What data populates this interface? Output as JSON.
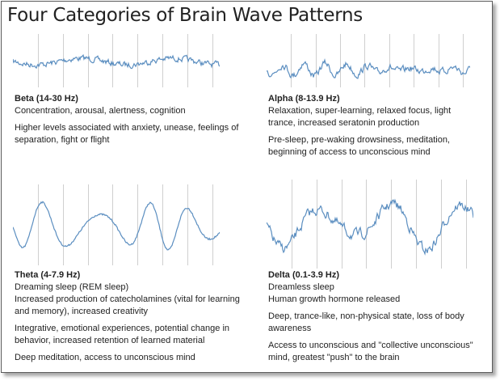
{
  "title": "Four Categories of Brain Wave Patterns",
  "wave_color": "#5b8ec0",
  "grid_color": "#cfcfcf",
  "panels": [
    {
      "heading": "Beta (14-30 Hz)",
      "line1": "Concentration, arousal, alertness, cognition",
      "para2": "Higher levels associated with anxiety, unease, feelings of separation, fight or flight",
      "para3": "",
      "para4": ""
    },
    {
      "heading": "Alpha (8-13.9 Hz)",
      "line1": "Relaxation, super-learning, relaxed focus, light trance, increased seratonin production",
      "para2": "Pre-sleep, pre-waking drowsiness, meditation, beginning of access to unconscious mind",
      "para3": "",
      "para4": ""
    },
    {
      "heading": "Theta (4-7.9 Hz)",
      "line1": "Dreaming sleep (REM sleep)",
      "line2": "Increased production of catecholamines (vital for learning and memory), increased creativity",
      "para2": "Integrative, emotional experiences, potential change in behavior, increased retention of learned material",
      "para3": "Deep meditation, access to unconscious mind"
    },
    {
      "heading": "Delta (0.1-3.9 Hz)",
      "line1": "Dreamless sleep",
      "line2": "Human growth hormone released",
      "para2": "Deep, trance-like, non-physical state, loss of body awareness",
      "para3": "Access to unconscious and \"collective unconscious\" mind, greatest \"push\" to the brain"
    }
  ]
}
